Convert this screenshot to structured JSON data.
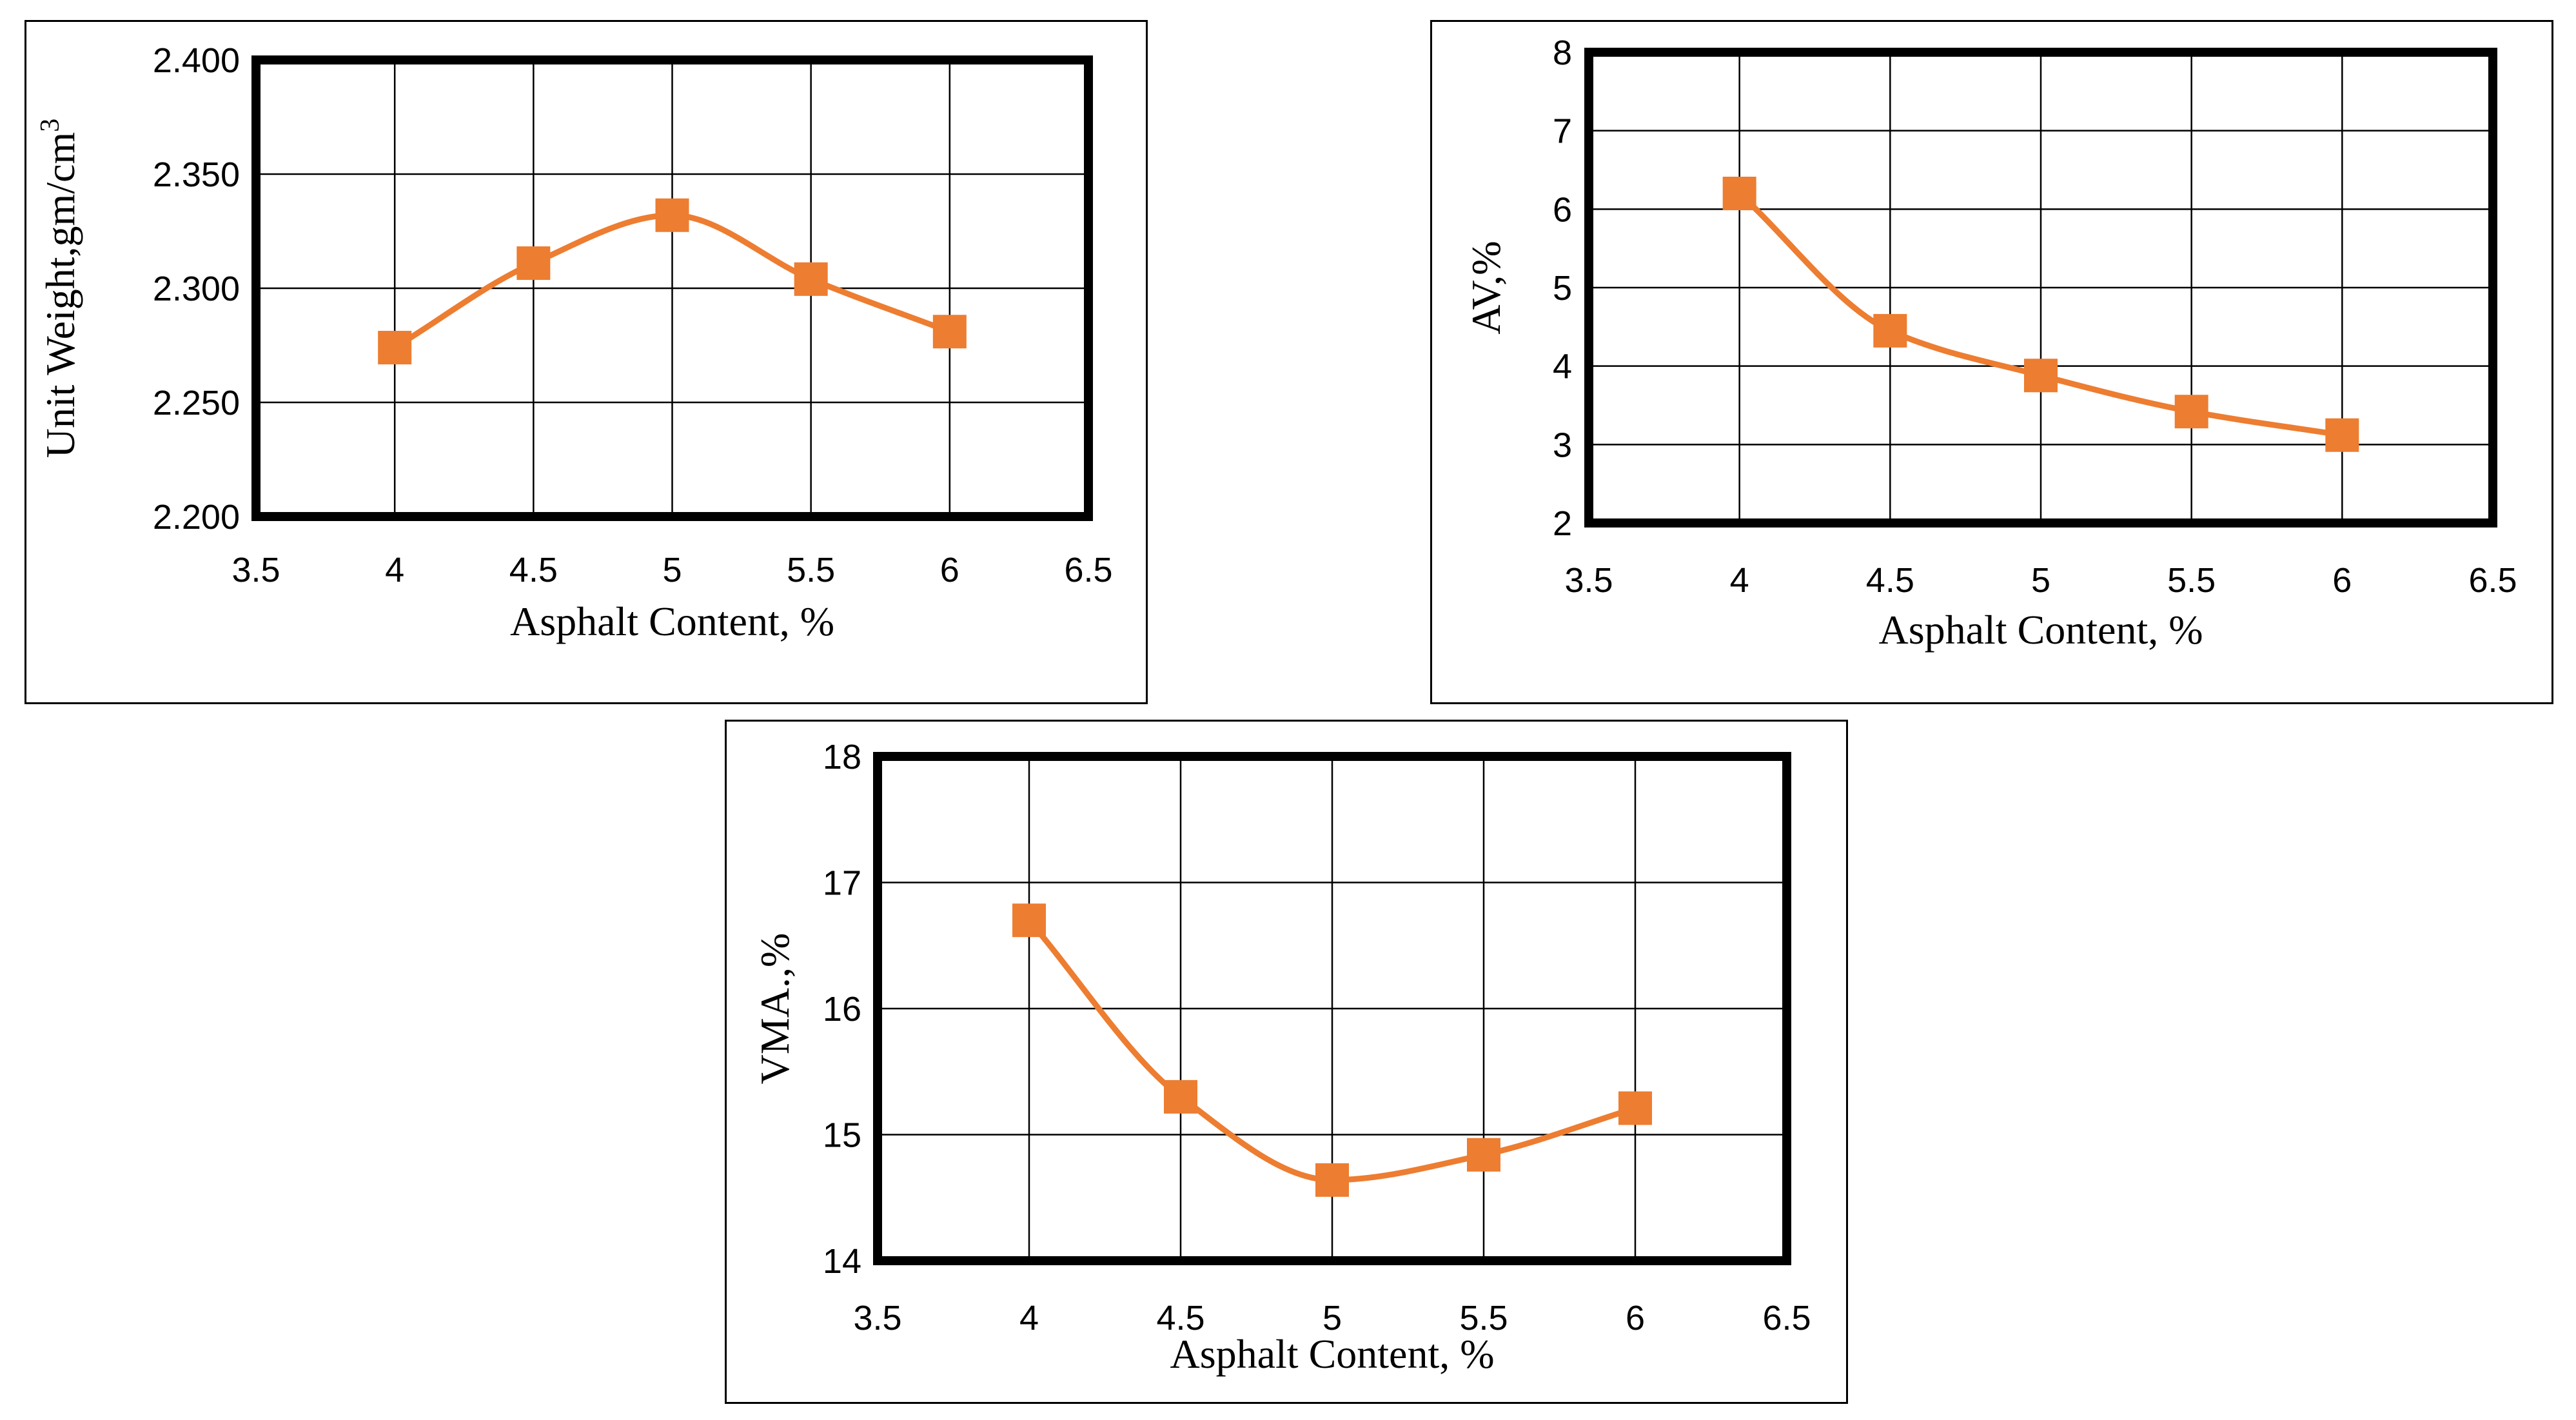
{
  "colors": {
    "series": "#ED7D31",
    "axis": "#000000",
    "background": "#FFFFFF"
  },
  "chart_data": [
    {
      "type": "line",
      "xlabel": "Asphalt Content, %",
      "ylabel": "Unit Weight,gm/cm",
      "ylabel_sup": "3",
      "x_ticks": [
        "3.5",
        "4",
        "4.5",
        "5",
        "5.5",
        "6",
        "6.5"
      ],
      "y_ticks": [
        "2.200",
        "2.250",
        "2.300",
        "2.350",
        "2.400"
      ],
      "xlim": [
        3.5,
        6.5
      ],
      "ylim": [
        2.2,
        2.4
      ],
      "grid": true,
      "smooth": true,
      "series": [
        {
          "name": "Unit Weight",
          "x": [
            4,
            4.5,
            5,
            5.5,
            6
          ],
          "y": [
            2.274,
            2.311,
            2.332,
            2.304,
            2.281
          ]
        }
      ]
    },
    {
      "type": "line",
      "xlabel": "Asphalt Content, %",
      "ylabel": "AV,%",
      "ylabel_sup": "",
      "x_ticks": [
        "3.5",
        "4",
        "4.5",
        "5",
        "5.5",
        "6",
        "6.5"
      ],
      "y_ticks": [
        "2",
        "3",
        "4",
        "5",
        "6",
        "7",
        "8"
      ],
      "xlim": [
        3.5,
        6.5
      ],
      "ylim": [
        2,
        8
      ],
      "grid": true,
      "smooth": true,
      "series": [
        {
          "name": "AV",
          "x": [
            4,
            4.5,
            5,
            5.5,
            6
          ],
          "y": [
            6.2,
            4.45,
            3.88,
            3.42,
            3.12
          ]
        }
      ]
    },
    {
      "type": "line",
      "xlabel": "Asphalt Content, %",
      "ylabel": "VMA.,%",
      "ylabel_sup": "",
      "x_ticks": [
        "3.5",
        "4",
        "4.5",
        "5",
        "5.5",
        "6",
        "6.5"
      ],
      "y_ticks": [
        "14",
        "15",
        "16",
        "17",
        "18"
      ],
      "xlim": [
        3.5,
        6.5
      ],
      "ylim": [
        14,
        18
      ],
      "grid": true,
      "smooth": true,
      "series": [
        {
          "name": "VMA",
          "x": [
            4,
            4.5,
            5,
            5.5,
            6
          ],
          "y": [
            16.7,
            15.3,
            14.64,
            14.84,
            15.21
          ]
        }
      ]
    }
  ]
}
